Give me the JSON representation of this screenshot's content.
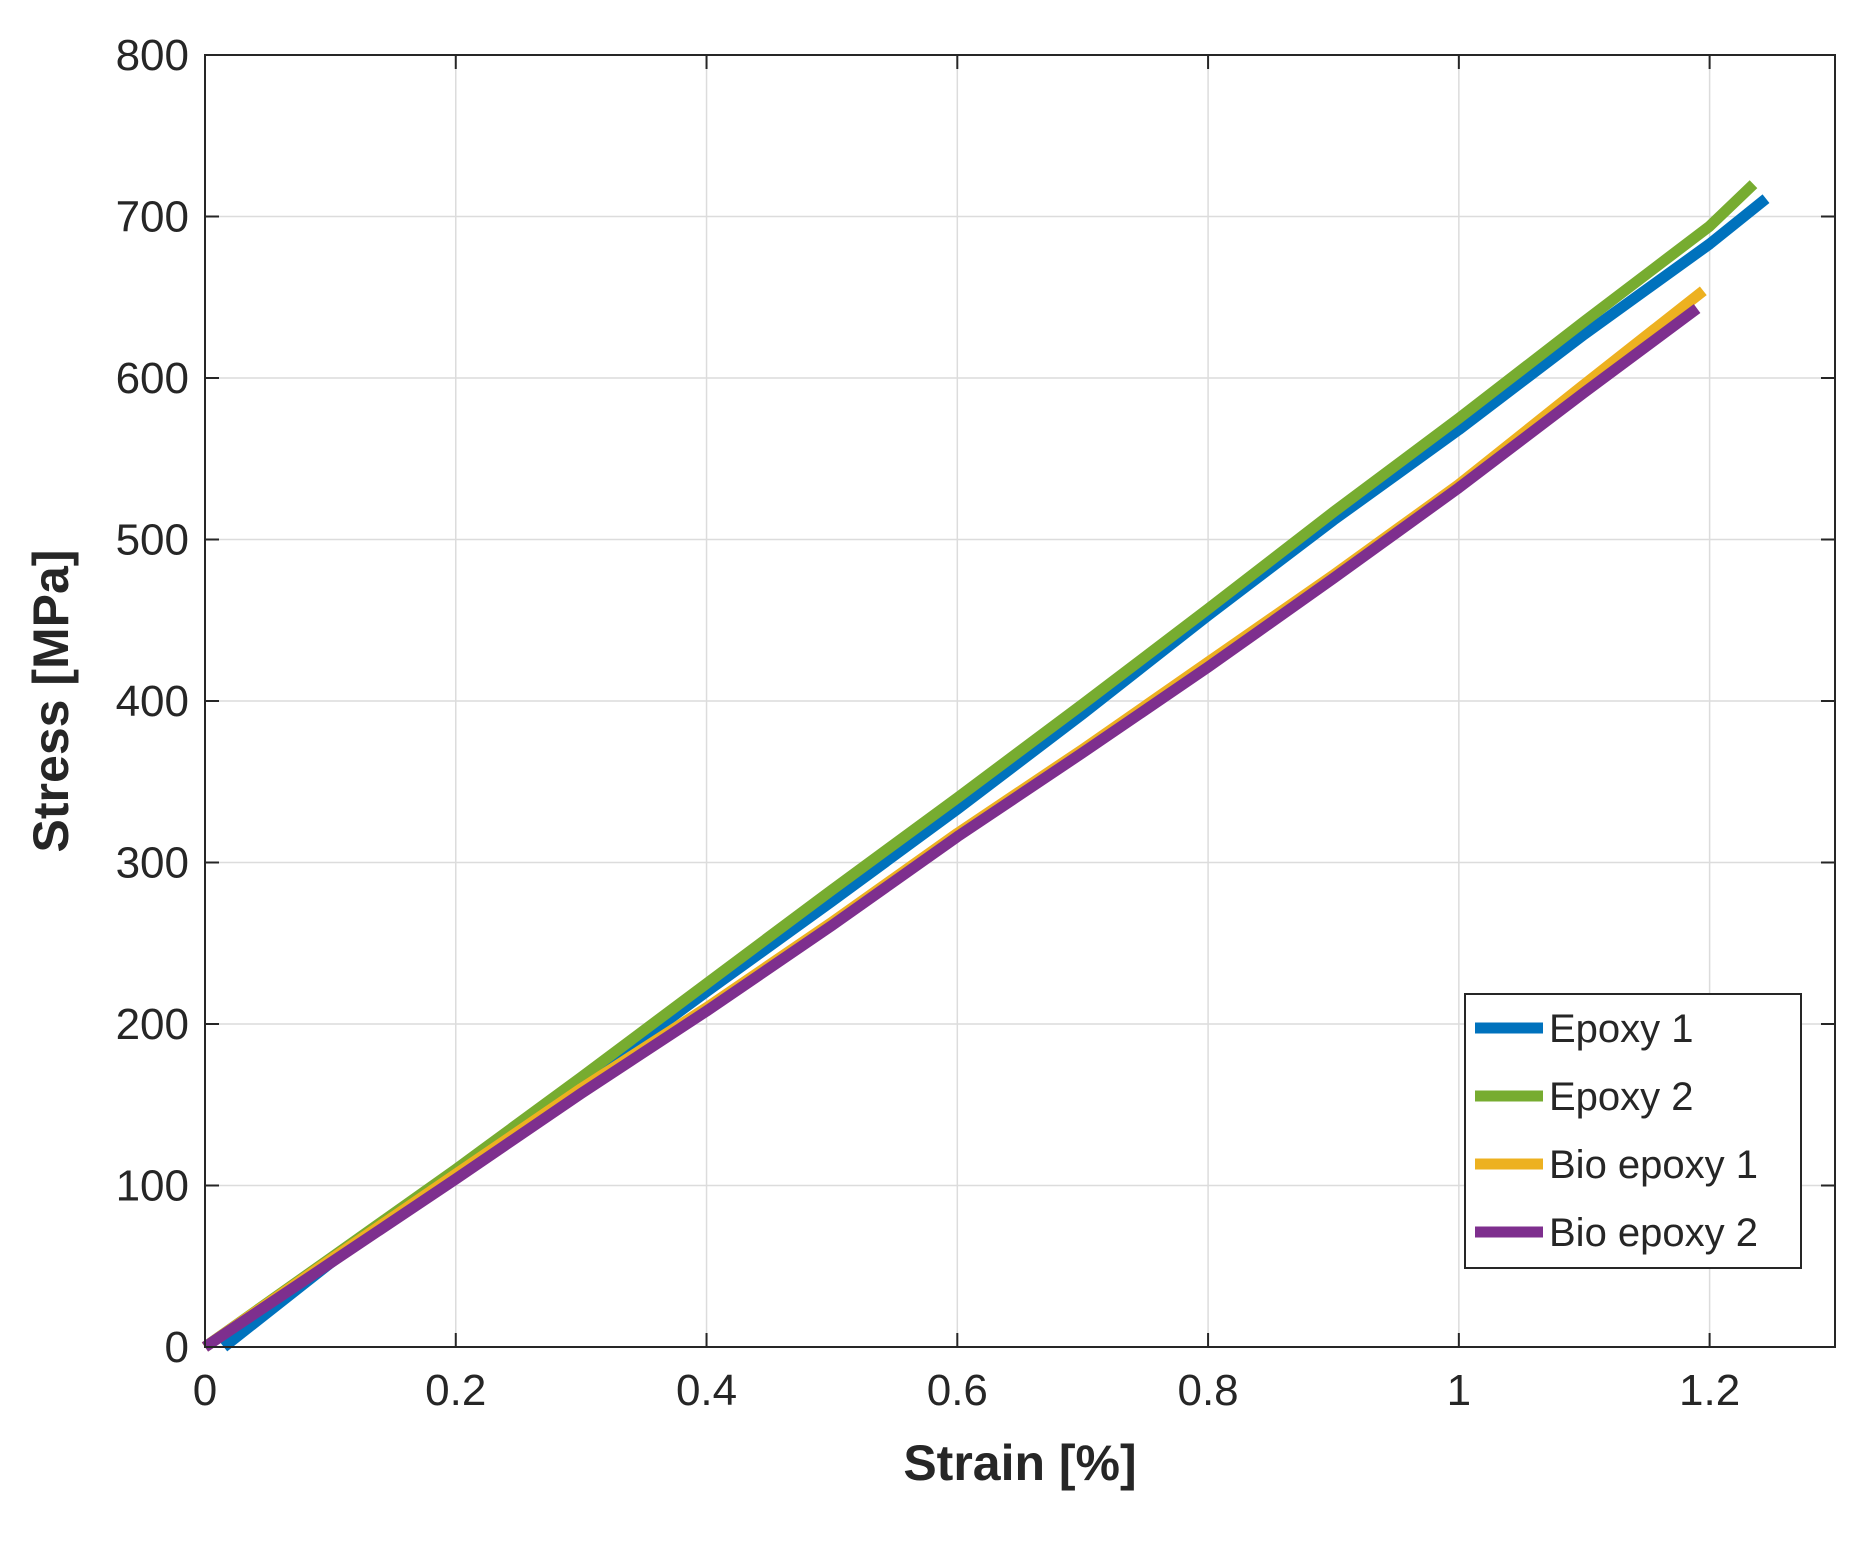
{
  "chart_data": {
    "type": "line",
    "title": "",
    "xlabel": "Strain [%]",
    "ylabel": "Stress [MPa]",
    "xlim": [
      0,
      1.3
    ],
    "ylim": [
      0,
      800
    ],
    "xticks": [
      0,
      0.2,
      0.4,
      0.6,
      0.8,
      1,
      1.2
    ],
    "xtick_labels": [
      "0",
      "0.2",
      "0.4",
      "0.6",
      "0.8",
      "1",
      "1.2"
    ],
    "yticks": [
      0,
      100,
      200,
      300,
      400,
      500,
      600,
      700,
      800
    ],
    "ytick_labels": [
      "0",
      "100",
      "200",
      "300",
      "400",
      "500",
      "600",
      "700",
      "800"
    ],
    "grid": true,
    "legend_position": "bottom-right",
    "series": [
      {
        "name": "Epoxy 1",
        "color": "#0072BD",
        "x": [
          0.015,
          0.1,
          0.2,
          0.3,
          0.4,
          0.5,
          0.6,
          0.7,
          0.8,
          0.9,
          1.0,
          1.1,
          1.2,
          1.245
        ],
        "y": [
          0,
          52,
          108,
          163,
          220,
          276,
          333,
          392,
          453,
          512,
          568,
          627,
          683,
          711
        ]
      },
      {
        "name": "Epoxy 2",
        "color": "#77AC30",
        "x": [
          0,
          0.1,
          0.2,
          0.3,
          0.4,
          0.5,
          0.6,
          0.7,
          0.8,
          0.9,
          1.0,
          1.1,
          1.2,
          1.235
        ],
        "y": [
          0,
          55,
          110,
          167,
          225,
          283,
          340,
          398,
          457,
          517,
          575,
          635,
          694,
          720
        ]
      },
      {
        "name": "Bio epoxy 1",
        "color": "#EDB120",
        "x": [
          0,
          0.1,
          0.2,
          0.3,
          0.4,
          0.5,
          0.6,
          0.7,
          0.8,
          0.9,
          1.0,
          1.1,
          1.195
        ],
        "y": [
          0,
          54,
          107,
          160,
          210,
          263,
          318,
          370,
          424,
          478,
          534,
          596,
          654
        ]
      },
      {
        "name": "Bio epoxy 2",
        "color": "#7E2F8E",
        "x": [
          0,
          0.1,
          0.2,
          0.3,
          0.4,
          0.5,
          0.6,
          0.7,
          0.8,
          0.9,
          1.0,
          1.1,
          1.19
        ],
        "y": [
          0,
          52,
          104,
          157,
          208,
          261,
          316,
          368,
          421,
          476,
          532,
          591,
          643
        ]
      }
    ]
  }
}
